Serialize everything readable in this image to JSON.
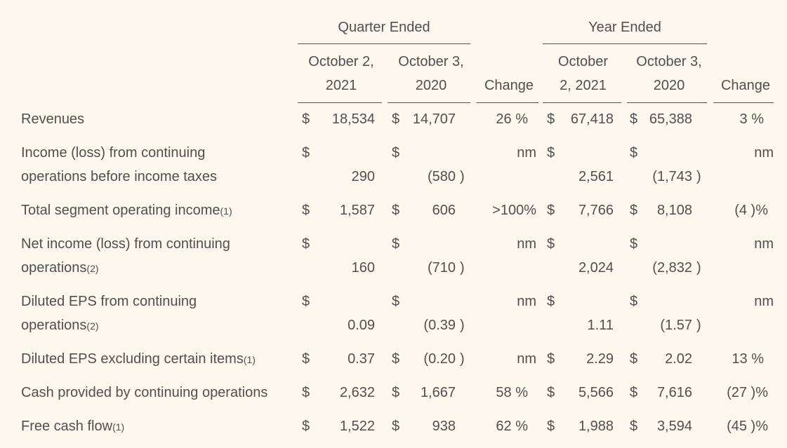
{
  "headers": {
    "quarter_group": "Quarter Ended",
    "year_group": "Year Ended",
    "q_cur_l1": "October 2,",
    "q_cur_l2": "2021",
    "q_prev_l1": "October 3,",
    "q_prev_l2": "2020",
    "q_change": "Change",
    "y_cur_l1": "October",
    "y_cur_l2": "2, 2021",
    "y_prev_l1": "October 3,",
    "y_prev_l2": "2020",
    "y_change": "Change"
  },
  "rows": [
    {
      "label": [
        "Revenues"
      ],
      "note": "",
      "q_cur_sym": "$",
      "q_cur": "18,534",
      "q_prev_sym": "$",
      "q_prev": "14,707",
      "q_prev_paren": "",
      "q_change": "26 %",
      "y_cur_sym": "$",
      "y_cur": "67,418",
      "y_prev_sym": "$",
      "y_prev": "65,388",
      "y_prev_paren": "",
      "y_change": "3 %"
    },
    {
      "label": [
        "Income (loss) from continuing",
        "operations before income taxes"
      ],
      "note": "",
      "q_cur_sym": "$",
      "q_cur": "290",
      "q_prev_sym": "$",
      "q_prev": "(580",
      "q_prev_paren": ")",
      "q_change": "nm",
      "y_cur_sym": "$",
      "y_cur": "2,561",
      "y_prev_sym": "$",
      "y_prev": "(1,743",
      "y_prev_paren": ")",
      "y_change": "nm"
    },
    {
      "label": [
        "Total segment operating income"
      ],
      "note": "(1)",
      "q_cur_sym": "$",
      "q_cur": "1,587",
      "q_prev_sym": "$",
      "q_prev": "606",
      "q_prev_paren": "",
      "q_change": ">100%",
      "y_cur_sym": "$",
      "y_cur": "7,766",
      "y_prev_sym": "$",
      "y_prev": "8,108",
      "y_prev_paren": "",
      "y_change": "(4 )%"
    },
    {
      "label": [
        "Net income (loss) from continuing",
        "operations"
      ],
      "note": "(2)",
      "q_cur_sym": "$",
      "q_cur": "160",
      "q_prev_sym": "$",
      "q_prev": "(710",
      "q_prev_paren": ")",
      "q_change": "nm",
      "y_cur_sym": "$",
      "y_cur": "2,024",
      "y_prev_sym": "$",
      "y_prev": "(2,832",
      "y_prev_paren": ")",
      "y_change": "nm"
    },
    {
      "label": [
        "Diluted EPS from continuing",
        "operations"
      ],
      "note": "(2)",
      "q_cur_sym": "$",
      "q_cur": "0.09",
      "q_prev_sym": "$",
      "q_prev": "(0.39",
      "q_prev_paren": ")",
      "q_change": "nm",
      "y_cur_sym": "$",
      "y_cur": "1.11",
      "y_prev_sym": "$",
      "y_prev": "(1.57",
      "y_prev_paren": ")",
      "y_change": "nm"
    },
    {
      "label": [
        "Diluted EPS excluding certain items"
      ],
      "note": "(1)",
      "q_cur_sym": "$",
      "q_cur": "0.37",
      "q_prev_sym": "$",
      "q_prev": "(0.20",
      "q_prev_paren": ")",
      "q_change": "nm",
      "y_cur_sym": "$",
      "y_cur": "2.29",
      "y_prev_sym": "$",
      "y_prev": "2.02",
      "y_prev_paren": "",
      "y_change": "13 %"
    },
    {
      "label": [
        "Cash provided by continuing operations"
      ],
      "note": "",
      "q_cur_sym": "$",
      "q_cur": "2,632",
      "q_prev_sym": "$",
      "q_prev": "1,667",
      "q_prev_paren": "",
      "q_change": "58 %",
      "y_cur_sym": "$",
      "y_cur": "5,566",
      "y_prev_sym": "$",
      "y_prev": "7,616",
      "y_prev_paren": "",
      "y_change": "(27 )%"
    },
    {
      "label": [
        "Free cash flow"
      ],
      "note": "(1)",
      "q_cur_sym": "$",
      "q_cur": "1,522",
      "q_prev_sym": "$",
      "q_prev": "938",
      "q_prev_paren": "",
      "q_change": "62 %",
      "y_cur_sym": "$",
      "y_cur": "1,988",
      "y_prev_sym": "$",
      "y_prev": "3,594",
      "y_prev_paren": "",
      "y_change": "(45 )%"
    }
  ]
}
